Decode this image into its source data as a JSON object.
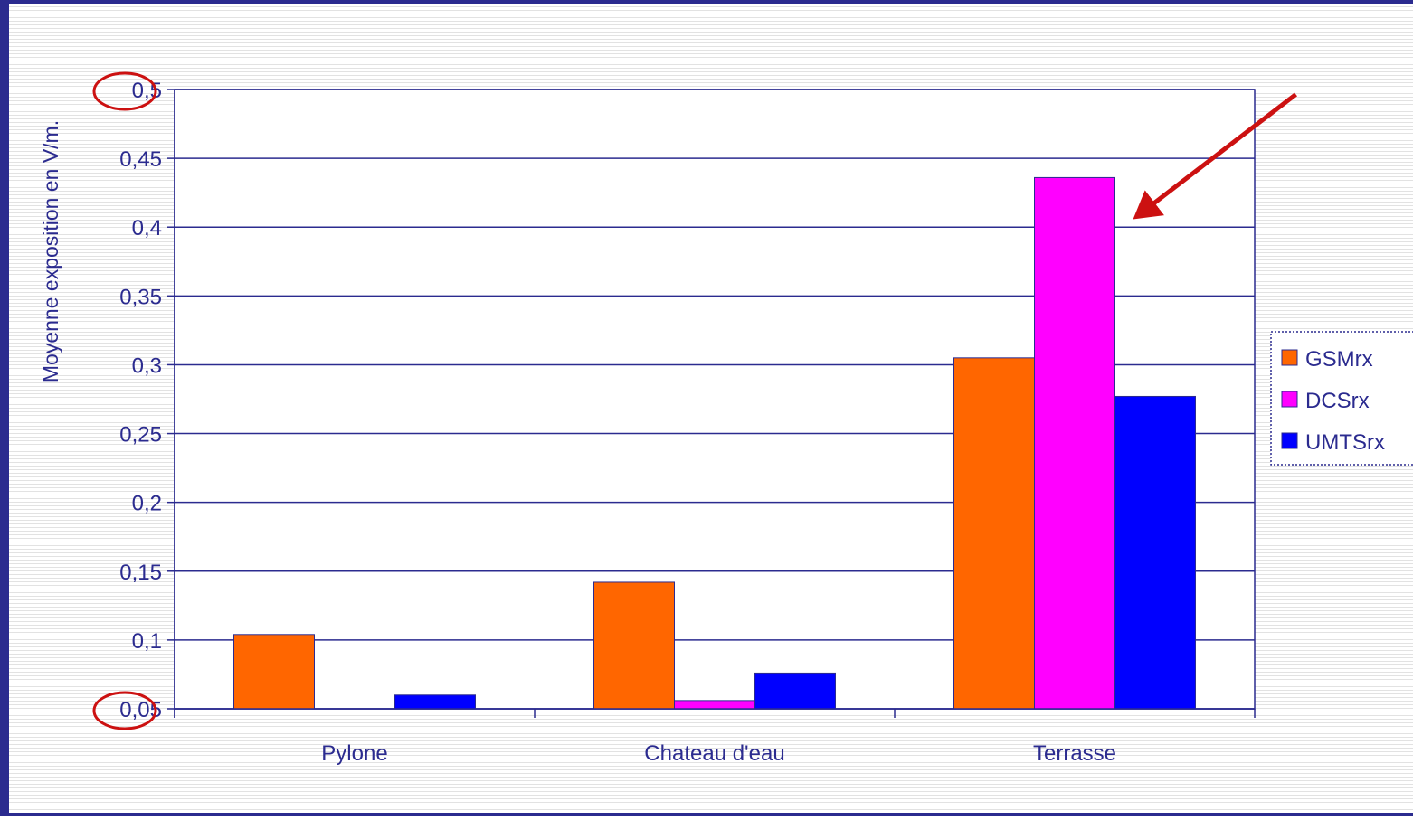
{
  "chart_data": {
    "type": "bar",
    "title": "",
    "xlabel": "",
    "ylabel": "Moyenne exposition en V/m.",
    "ylim": [
      0.05,
      0.5
    ],
    "yticks": [
      0.05,
      0.1,
      0.15,
      0.2,
      0.25,
      0.3,
      0.35,
      0.4,
      0.45,
      0.5
    ],
    "ytick_labels": [
      "0,05",
      "0,1",
      "0,15",
      "0,2",
      "0,25",
      "0,3",
      "0,35",
      "0,4",
      "0,45",
      "0,5"
    ],
    "categories": [
      "Pylone",
      "Chateau d'eau",
      "Terrasse"
    ],
    "series": [
      {
        "name": "GSMrx",
        "color": "#ff6600",
        "values": [
          0.104,
          0.142,
          0.305
        ]
      },
      {
        "name": "DCSrx",
        "color": "#ff00ff",
        "values": [
          0.05,
          0.056,
          0.436
        ]
      },
      {
        "name": "UMTSrx",
        "color": "#0000ff",
        "values": [
          0.06,
          0.076,
          0.277
        ]
      }
    ],
    "grid": true,
    "legend_position": "right",
    "annotation_color": "#cc1111",
    "annotations": [
      {
        "type": "circle",
        "target": "ytick",
        "value": 0.5
      },
      {
        "type": "circle",
        "target": "ytick",
        "value": 0.05
      },
      {
        "type": "arrow",
        "target": "bar",
        "series": "DCSrx",
        "category": "Terrasse"
      }
    ]
  }
}
